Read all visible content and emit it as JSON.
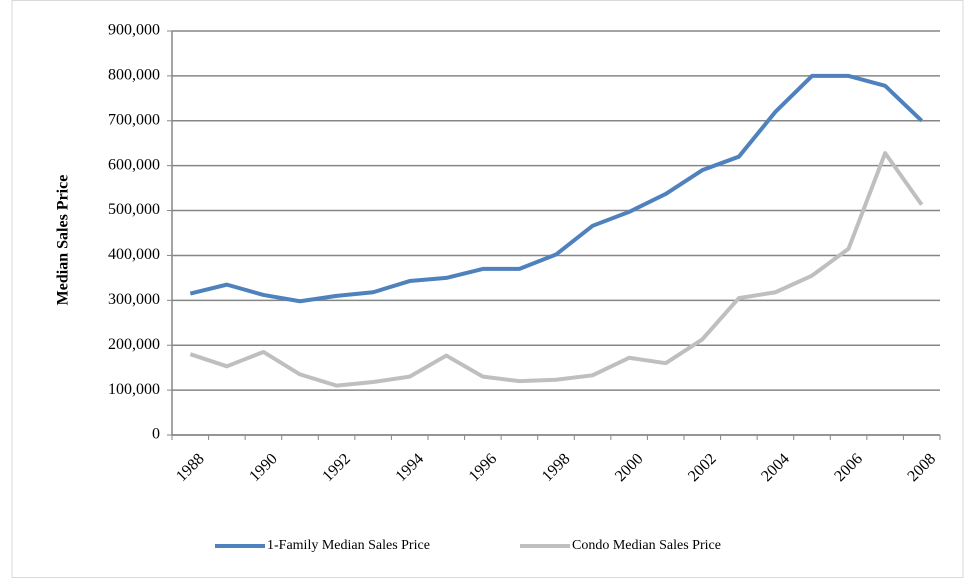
{
  "chart_data": {
    "type": "line",
    "ylabel": "Median Sales Price",
    "categories": [
      "1988",
      null,
      "1990",
      null,
      "1992",
      null,
      "1994",
      null,
      "1996",
      null,
      "1998",
      null,
      "2000",
      null,
      "2002",
      null,
      "2004",
      null,
      "2006",
      null,
      "2008"
    ],
    "series": [
      {
        "name": "1-Family Median Sales Price",
        "color": "#4f81bd",
        "values": [
          315000,
          335000,
          312000,
          298000,
          310000,
          318000,
          343000,
          350000,
          370000,
          370000,
          402000,
          466000,
          497000,
          537000,
          590000,
          620000,
          720000,
          800000,
          800000,
          778000,
          700000
        ]
      },
      {
        "name": "Condo Median Sales Price",
        "color": "#bfbfbf",
        "values": [
          180000,
          153000,
          185000,
          135000,
          110000,
          118000,
          130000,
          177000,
          130000,
          120000,
          123000,
          133000,
          172000,
          160000,
          213000,
          305000,
          318000,
          355000,
          415000,
          628000,
          513000
        ]
      }
    ],
    "ylim": [
      0,
      900000
    ],
    "yticks": [
      0,
      {
        "value": 100000,
        "label": "100,000"
      },
      {
        "value": 200000,
        "label": "200,000"
      },
      {
        "value": 300000,
        "label": "300,000"
      },
      {
        "value": 400000,
        "label": "400,000"
      },
      {
        "value": 500000,
        "label": "500,000"
      },
      {
        "value": 600000,
        "label": "600,000"
      },
      {
        "value": 700000,
        "label": "700,000"
      },
      {
        "value": 800000,
        "label": "800,000"
      },
      {
        "value": 900000,
        "label": "900,000"
      }
    ],
    "grid": true,
    "legend": "bottom"
  }
}
